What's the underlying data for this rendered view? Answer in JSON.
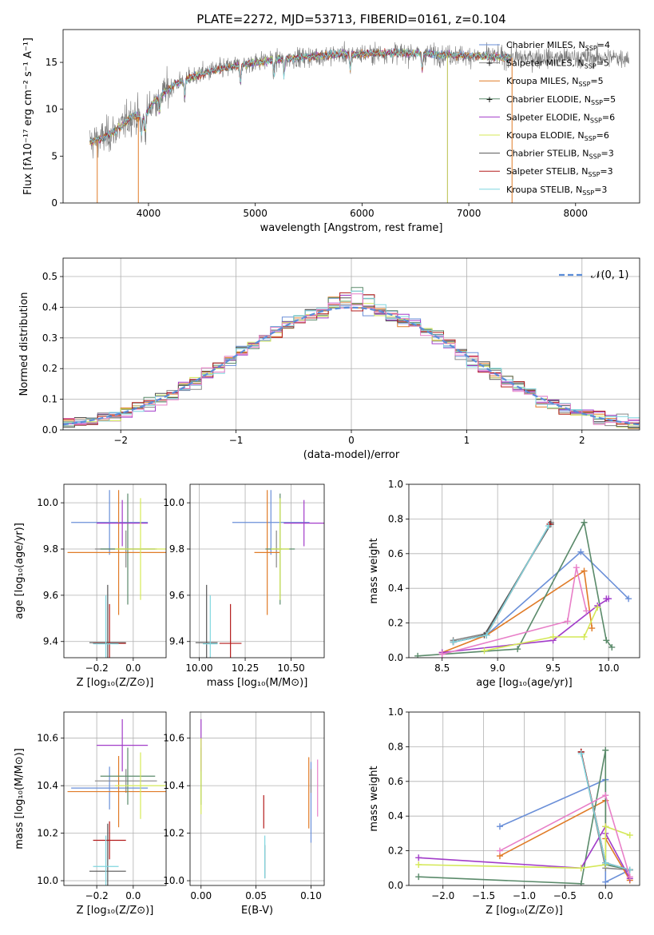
{
  "colors": {
    "Chabrier MILES": "#6a8fd8",
    "Salpeter MILES": "#888888",
    "Kroupa MILES": "#e07b27",
    "Chabrier ELODIE": "#5a8a6a",
    "Salpeter ELODIE": "#a23cc9",
    "Kroupa ELODIE": "#d4e857",
    "Chabrier STELIB": "#555555",
    "Salpeter STELIB": "#b31b1b",
    "Kroupa STELIB": "#7fd6df"
  },
  "chart_data": [
    {
      "id": "spectrum",
      "type": "line",
      "title": "PLATE=2272, MJD=53713, FIBERID=0161, z=0.104",
      "xlabel": "wavelength [Angstrom, rest frame]",
      "ylabel": "Flux [fλ10⁻¹⁷ erg cm⁻² s⁻¹ A⁻¹]",
      "xlim": [
        3200,
        8600
      ],
      "ylim": [
        0,
        18.5
      ],
      "xticks": [
        4000,
        5000,
        6000,
        7000,
        8000
      ],
      "yticks": [
        0,
        5,
        10,
        15
      ],
      "legend_placement": "right",
      "legend": [
        "Chabrier MILES, Nₛₛₚ=4",
        "Salpeter MILES, Nₛₛₚ=5",
        "Kroupa MILES, Nₛₛₚ=5",
        "Chabrier ELODIE, Nₛₛₚ=5",
        "Salpeter ELODIE, Nₛₛₚ=6",
        "Kroupa ELODIE, Nₛₛₚ=6",
        "Chabrier STELIB, Nₛₛₚ=3",
        "Salpeter STELIB, Nₛₛₚ=3",
        "Kroupa STELIB, Nₛₛₚ=3"
      ],
      "legend_text": [
        {
          "name": "Chabrier MILES, N",
          "sub": "SSP",
          "n": "=4"
        },
        {
          "name": "Salpeter MILES, N",
          "sub": "SSP",
          "n": "=5"
        },
        {
          "name": "Kroupa MILES, N",
          "sub": "SSP",
          "n": "=5"
        },
        {
          "name": "Chabrier ELODIE, N",
          "sub": "SSP",
          "n": "=5"
        },
        {
          "name": "Salpeter ELODIE, N",
          "sub": "SSP",
          "n": "=6"
        },
        {
          "name": "Kroupa ELODIE, N",
          "sub": "SSP",
          "n": "=6"
        },
        {
          "name": "Chabrier STELIB, N",
          "sub": "SSP",
          "n": "=3"
        },
        {
          "name": "Salpeter STELIB, N",
          "sub": "SSP",
          "n": "=3"
        },
        {
          "name": "Kroupa STELIB, N",
          "sub": "SSP",
          "n": "=3"
        }
      ],
      "model_curve": {
        "x": [
          3450,
          3550,
          3650,
          3750,
          3850,
          3950,
          4050,
          4150,
          4250,
          4400,
          4600,
          4800,
          5000,
          5200,
          5400,
          5600,
          5800,
          6000,
          6200,
          6400,
          6600,
          6800,
          7000,
          7200,
          7400
        ],
        "y": [
          6.5,
          6.8,
          7.4,
          8.2,
          9.4,
          9.0,
          10.8,
          11.8,
          12.7,
          13.4,
          14.1,
          14.6,
          15.0,
          15.3,
          15.5,
          15.7,
          15.9,
          15.9,
          16.0,
          16.0,
          15.9,
          15.8,
          15.7,
          15.6,
          15.5
        ]
      },
      "data_range": [
        3450,
        8500
      ]
    },
    {
      "id": "residuals",
      "type": "line",
      "xlabel": "(data-model)/error",
      "ylabel": "Normed distribution",
      "xlim": [
        -2.5,
        2.5
      ],
      "ylim": [
        0,
        0.56
      ],
      "xticks": [
        -2,
        -1,
        0,
        1,
        2
      ],
      "yticks": [
        0.0,
        0.1,
        0.2,
        0.3,
        0.4,
        0.5
      ],
      "legend": [
        "𝒩(0, 1)"
      ],
      "legend_placement": "top-right",
      "bin_width": 0.1
    },
    {
      "id": "age_vs_Z",
      "type": "scatter",
      "xlabel": "Z [log₁₀(Z/Z⊙)]",
      "ylabel": "age  [log₁₀(age/yr)]",
      "xlim": [
        -0.38,
        0.18
      ],
      "ylim": [
        9.33,
        10.08
      ],
      "xticks": [
        -0.2,
        0.0
      ],
      "yticks": [
        9.4,
        9.6,
        9.8,
        10.0
      ],
      "points": [
        {
          "series": "Chabrier MILES",
          "x": -0.13,
          "y": 9.915,
          "xerr": 0.21,
          "yerr": 0.14
        },
        {
          "series": "Salpeter MILES",
          "x": -0.04,
          "y": 9.8,
          "xerr": 0.17,
          "yerr": 0.08
        },
        {
          "series": "Kroupa MILES",
          "x": -0.08,
          "y": 9.785,
          "xerr": 0.28,
          "yerr": 0.27
        },
        {
          "series": "Chabrier ELODIE",
          "x": -0.03,
          "y": 9.8,
          "xerr": 0.15,
          "yerr": 0.24
        },
        {
          "series": "Salpeter ELODIE",
          "x": -0.06,
          "y": 9.912,
          "xerr": 0.14,
          "yerr": 0.1
        },
        {
          "series": "Kroupa ELODIE",
          "x": 0.04,
          "y": 9.8,
          "xerr": 0.14,
          "yerr": 0.22
        },
        {
          "series": "Chabrier STELIB",
          "x": -0.14,
          "y": 9.395,
          "xerr": 0.1,
          "yerr": 0.25
        },
        {
          "series": "Salpeter STELIB",
          "x": -0.13,
          "y": 9.392,
          "xerr": 0.09,
          "yerr": 0.17
        },
        {
          "series": "Kroupa STELIB",
          "x": -0.15,
          "y": 9.39,
          "xerr": 0.07,
          "yerr": 0.21
        }
      ]
    },
    {
      "id": "age_vs_mass",
      "type": "scatter",
      "xlabel": "mass [log₁₀(M/M⊙)]",
      "ylabel": "",
      "xlim": [
        9.95,
        10.68
      ],
      "ylim": [
        9.33,
        10.08
      ],
      "xticks": [
        10.0,
        10.25,
        10.5
      ],
      "yticks": [
        9.4,
        9.6,
        9.8,
        10.0
      ],
      "points": [
        {
          "series": "Chabrier MILES",
          "x": 10.39,
          "y": 9.915,
          "xerr": 0.21,
          "yerr": 0.14
        },
        {
          "series": "Salpeter MILES",
          "x": 10.42,
          "y": 9.8,
          "xerr": 0.03,
          "yerr": 0.08
        },
        {
          "series": "Kroupa MILES",
          "x": 10.37,
          "y": 9.785,
          "xerr": 0.07,
          "yerr": 0.27
        },
        {
          "series": "Chabrier ELODIE",
          "x": 10.44,
          "y": 9.8,
          "xerr": 0.08,
          "yerr": 0.24
        },
        {
          "series": "Salpeter ELODIE",
          "x": 10.57,
          "y": 9.912,
          "xerr": 0.11,
          "yerr": 0.1
        },
        {
          "series": "Kroupa ELODIE",
          "x": 10.44,
          "y": 9.8,
          "xerr": 0.05,
          "yerr": 0.22
        },
        {
          "series": "Chabrier STELIB",
          "x": 10.04,
          "y": 9.395,
          "xerr": 0.06,
          "yerr": 0.25
        },
        {
          "series": "Salpeter STELIB",
          "x": 10.17,
          "y": 9.392,
          "xerr": 0.06,
          "yerr": 0.17
        },
        {
          "series": "Kroupa STELIB",
          "x": 10.06,
          "y": 9.39,
          "xerr": 0.04,
          "yerr": 0.21
        }
      ]
    },
    {
      "id": "weight_vs_age",
      "type": "line",
      "xlabel": "age  [log₁₀(age/yr)]",
      "ylabel": "mass weight",
      "xlim": [
        8.2,
        10.28
      ],
      "ylim": [
        0,
        1.0
      ],
      "xticks": [
        8.5,
        9.0,
        9.5,
        10.0
      ],
      "yticks": [
        0.0,
        0.2,
        0.4,
        0.6,
        0.8,
        1.0
      ],
      "series": [
        {
          "name": "Chabrier MILES",
          "x": [
            8.6,
            8.9,
            9.75,
            10.18
          ],
          "y": [
            0.09,
            0.13,
            0.61,
            0.34
          ]
        },
        {
          "name": "Salpeter MILES",
          "x": [
            8.6,
            8.9,
            9.48
          ],
          "y": [
            0.1,
            0.14,
            0.78
          ]
        },
        {
          "name": "Kroupa MILES",
          "x": [
            8.5,
            8.9,
            9.78,
            9.85
          ],
          "y": [
            0.03,
            0.13,
            0.5,
            0.17
          ]
        },
        {
          "name": "Chabrier ELODIE",
          "x": [
            8.28,
            9.18,
            9.78,
            9.98,
            10.03
          ],
          "y": [
            0.01,
            0.05,
            0.78,
            0.1,
            0.06
          ]
        },
        {
          "name": "Salpeter ELODIE",
          "x": [
            8.5,
            9.5,
            9.9,
            10.0,
            9.98
          ],
          "y": [
            0.03,
            0.1,
            0.3,
            0.34,
            0.34
          ]
        },
        {
          "name": "Kroupa ELODIE",
          "x": [
            8.88,
            9.5,
            9.78,
            9.9
          ],
          "y": [
            0.04,
            0.12,
            0.12,
            0.29
          ]
        },
        {
          "name": "Chabrier STELIB",
          "x": [
            8.6,
            8.88,
            9.48
          ],
          "y": [
            0.09,
            0.13,
            0.77
          ]
        },
        {
          "name": "Salpeter STELIB",
          "x": [
            8.6,
            8.9,
            9.47
          ],
          "y": [
            0.09,
            0.13,
            0.77
          ]
        },
        {
          "name": "Kroupa STELIB",
          "x": [
            8.6,
            8.9,
            9.46
          ],
          "y": [
            0.09,
            0.13,
            0.76
          ]
        },
        {
          "name": "extra",
          "x": [
            8.5,
            9.63,
            9.71,
            9.8
          ],
          "y": [
            0.02,
            0.21,
            0.52,
            0.27
          ]
        }
      ]
    },
    {
      "id": "mass_vs_Z",
      "type": "scatter",
      "xlabel": "Z [log₁₀(Z/Z⊙)]",
      "ylabel": "mass [log₁₀(M/M⊙)]",
      "xlim": [
        -0.38,
        0.18
      ],
      "ylim": [
        9.98,
        10.71
      ],
      "xticks": [
        -0.2,
        0.0
      ],
      "yticks": [
        10.0,
        10.2,
        10.4,
        10.6
      ],
      "points": [
        {
          "series": "Chabrier MILES",
          "x": -0.13,
          "y": 10.39,
          "xerr": 0.21,
          "yerr": 0.09
        },
        {
          "series": "Salpeter MILES",
          "x": -0.04,
          "y": 10.42,
          "xerr": 0.17,
          "yerr": 0.05
        },
        {
          "series": "Kroupa MILES",
          "x": -0.08,
          "y": 10.375,
          "xerr": 0.28,
          "yerr": 0.15
        },
        {
          "series": "Chabrier ELODIE",
          "x": -0.03,
          "y": 10.44,
          "xerr": 0.15,
          "yerr": 0.12
        },
        {
          "series": "Salpeter ELODIE",
          "x": -0.06,
          "y": 10.57,
          "xerr": 0.14,
          "yerr": 0.11
        },
        {
          "series": "Kroupa ELODIE",
          "x": 0.04,
          "y": 10.4,
          "xerr": 0.14,
          "yerr": 0.14
        },
        {
          "series": "Chabrier STELIB",
          "x": -0.14,
          "y": 10.04,
          "xerr": 0.1,
          "yerr": 0.2
        },
        {
          "series": "Salpeter STELIB",
          "x": -0.13,
          "y": 10.17,
          "xerr": 0.09,
          "yerr": 0.08
        },
        {
          "series": "Kroupa STELIB",
          "x": -0.15,
          "y": 10.06,
          "xerr": 0.07,
          "yerr": 0.13
        }
      ]
    },
    {
      "id": "mass_vs_EBV",
      "type": "scatter",
      "xlabel": "E(B-V)",
      "ylabel": "",
      "xlim": [
        -0.01,
        0.112
      ],
      "ylim": [
        9.98,
        10.71
      ],
      "xticks": [
        0.0,
        0.05,
        0.1
      ],
      "yticks": [
        10.0,
        10.2,
        10.4,
        10.6
      ],
      "points": [
        {
          "series": "Chabrier MILES",
          "x": 0.1,
          "y": 10.33,
          "yerr": 0.17
        },
        {
          "series": "Salpeter MILES",
          "x": 0.1,
          "y": 10.42,
          "yerr": 0.05
        },
        {
          "series": "Kroupa MILES",
          "x": 0.098,
          "y": 10.37,
          "yerr": 0.15
        },
        {
          "series": "Chabrier ELODIE",
          "x": 0.0,
          "y": 10.44,
          "yerr": 0.12
        },
        {
          "series": "Salpeter ELODIE",
          "x": 0.0,
          "y": 10.57,
          "yerr": 0.11
        },
        {
          "series": "Kroupa ELODIE",
          "x": 0.0,
          "y": 10.44,
          "yerr": 0.16
        },
        {
          "series": "Chabrier STELIB",
          "x": 0.058,
          "y": 10.08,
          "yerr": 0.07
        },
        {
          "series": "Salpeter STELIB",
          "x": 0.057,
          "y": 10.29,
          "yerr": 0.07
        },
        {
          "series": "Kroupa STELIB",
          "x": 0.058,
          "y": 10.1,
          "yerr": 0.09
        },
        {
          "series": "extra",
          "x": 0.106,
          "y": 10.39,
          "yerr": 0.12
        }
      ]
    },
    {
      "id": "weight_vs_Z",
      "type": "line",
      "xlabel": "Z [log₁₀(Z/Z⊙)]",
      "ylabel": "mass weight",
      "xlim": [
        -2.42,
        0.42
      ],
      "ylim": [
        0,
        1.0
      ],
      "xticks": [
        -2.0,
        -1.5,
        -1.0,
        -0.5,
        0.0
      ],
      "yticks": [
        0.0,
        0.2,
        0.4,
        0.6,
        0.8,
        1.0
      ],
      "series": [
        {
          "name": "Chabrier MILES",
          "x": [
            -1.3,
            0.0,
            0.0,
            0.3
          ],
          "y": [
            0.34,
            0.61,
            0.02,
            0.09
          ]
        },
        {
          "name": "Salpeter MILES",
          "x": [
            -0.3,
            0.0,
            0.3
          ],
          "y": [
            0.77,
            0.1,
            0.09
          ]
        },
        {
          "name": "Kroupa MILES",
          "x": [
            -1.3,
            0.0,
            0.0,
            0.3
          ],
          "y": [
            0.17,
            0.49,
            0.27,
            0.03
          ]
        },
        {
          "name": "Chabrier ELODIE",
          "x": [
            -2.3,
            -0.3,
            0.0,
            0.0,
            0.3
          ],
          "y": [
            0.05,
            0.01,
            0.78,
            0.12,
            0.09
          ]
        },
        {
          "name": "Salpeter ELODIE",
          "x": [
            -2.3,
            -0.3,
            0.0,
            0.0,
            0.3
          ],
          "y": [
            0.16,
            0.1,
            0.34,
            0.3,
            0.04
          ]
        },
        {
          "name": "Kroupa ELODIE",
          "x": [
            -2.3,
            -0.3,
            0.0,
            0.0,
            0.3
          ],
          "y": [
            0.12,
            0.1,
            0.12,
            0.34,
            0.29
          ]
        },
        {
          "name": "Chabrier STELIB",
          "x": [
            -0.3,
            0.0,
            0.3
          ],
          "y": [
            0.77,
            0.13,
            0.09
          ]
        },
        {
          "name": "Salpeter STELIB",
          "x": [
            -0.3,
            0.0,
            0.3
          ],
          "y": [
            0.77,
            0.13,
            0.09
          ]
        },
        {
          "name": "Kroupa STELIB",
          "x": [
            -0.3,
            0.0,
            0.3
          ],
          "y": [
            0.76,
            0.13,
            0.09
          ]
        },
        {
          "name": "extra",
          "x": [
            -1.3,
            0.0,
            0.3
          ],
          "y": [
            0.2,
            0.52,
            0.05
          ]
        }
      ]
    }
  ]
}
